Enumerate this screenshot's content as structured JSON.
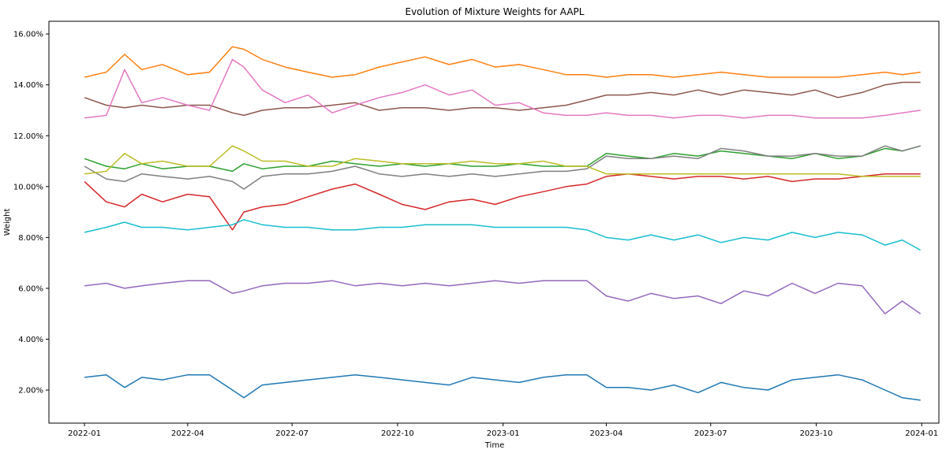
{
  "chart_data": {
    "type": "line",
    "title": "Evolution of Mixture Weights for AAPL",
    "xlabel": "Time",
    "ylabel": "Weight",
    "x_range": [
      "2021-12-01",
      "2024-01-16"
    ],
    "ylim": [
      0.007,
      0.165
    ],
    "x_ticks": [
      {
        "date": "2022-01-01",
        "label": "2022-01"
      },
      {
        "date": "2022-04-01",
        "label": "2022-04"
      },
      {
        "date": "2022-07-01",
        "label": "2022-07"
      },
      {
        "date": "2022-10-01",
        "label": "2022-10"
      },
      {
        "date": "2023-01-01",
        "label": "2023-01"
      },
      {
        "date": "2023-04-01",
        "label": "2023-04"
      },
      {
        "date": "2023-07-01",
        "label": "2023-07"
      },
      {
        "date": "2023-10-01",
        "label": "2023-10"
      },
      {
        "date": "2024-01-01",
        "label": "2024-01"
      }
    ],
    "y_ticks": [
      {
        "value": 0.02,
        "label": "2.00%"
      },
      {
        "value": 0.04,
        "label": "4.00%"
      },
      {
        "value": 0.06,
        "label": "6.00%"
      },
      {
        "value": 0.08,
        "label": "8.00%"
      },
      {
        "value": 0.1,
        "label": "10.00%"
      },
      {
        "value": 0.12,
        "label": "12.00%"
      },
      {
        "value": 0.14,
        "label": "14.00%"
      },
      {
        "value": 0.16,
        "label": "16.00%"
      }
    ],
    "grid": false,
    "legend": "none",
    "dates": [
      "2022-01-01",
      "2022-01-20",
      "2022-02-05",
      "2022-02-20",
      "2022-03-10",
      "2022-04-01",
      "2022-04-20",
      "2022-05-10",
      "2022-05-20",
      "2022-06-05",
      "2022-06-25",
      "2022-07-15",
      "2022-08-05",
      "2022-08-25",
      "2022-09-15",
      "2022-10-05",
      "2022-10-25",
      "2022-11-15",
      "2022-12-05",
      "2022-12-25",
      "2023-01-15",
      "2023-02-05",
      "2023-02-25",
      "2023-03-15",
      "2023-04-01",
      "2023-04-20",
      "2023-05-10",
      "2023-05-30",
      "2023-06-20",
      "2023-07-10",
      "2023-07-30",
      "2023-08-20",
      "2023-09-10",
      "2023-09-30",
      "2023-10-20",
      "2023-11-10",
      "2023-11-30",
      "2023-12-15",
      "2023-12-31"
    ],
    "series": [
      {
        "color": "#1f77b4",
        "values": [
          0.025,
          0.026,
          0.021,
          0.025,
          0.024,
          0.026,
          0.026,
          0.02,
          0.017,
          0.022,
          0.023,
          0.024,
          0.025,
          0.026,
          0.025,
          0.024,
          0.023,
          0.022,
          0.025,
          0.024,
          0.023,
          0.025,
          0.026,
          0.026,
          0.021,
          0.021,
          0.02,
          0.022,
          0.019,
          0.023,
          0.021,
          0.02,
          0.024,
          0.025,
          0.026,
          0.024,
          0.02,
          0.017,
          0.016
        ]
      },
      {
        "color": "#ff7f0e",
        "values": [
          0.143,
          0.145,
          0.152,
          0.146,
          0.148,
          0.144,
          0.145,
          0.155,
          0.154,
          0.15,
          0.147,
          0.145,
          0.143,
          0.144,
          0.147,
          0.149,
          0.151,
          0.148,
          0.15,
          0.147,
          0.148,
          0.146,
          0.144,
          0.144,
          0.143,
          0.144,
          0.144,
          0.143,
          0.144,
          0.145,
          0.144,
          0.143,
          0.143,
          0.143,
          0.143,
          0.144,
          0.145,
          0.144,
          0.145
        ]
      },
      {
        "color": "#2ca02c",
        "values": [
          0.111,
          0.108,
          0.107,
          0.109,
          0.107,
          0.108,
          0.108,
          0.106,
          0.109,
          0.107,
          0.108,
          0.108,
          0.11,
          0.109,
          0.108,
          0.109,
          0.108,
          0.109,
          0.108,
          0.108,
          0.109,
          0.108,
          0.108,
          0.108,
          0.113,
          0.112,
          0.111,
          0.113,
          0.112,
          0.114,
          0.113,
          0.112,
          0.111,
          0.113,
          0.111,
          0.112,
          0.115,
          0.114,
          0.116
        ]
      },
      {
        "color": "#d62728",
        "values": [
          0.102,
          0.094,
          0.092,
          0.097,
          0.094,
          0.097,
          0.096,
          0.083,
          0.09,
          0.092,
          0.093,
          0.096,
          0.099,
          0.101,
          0.097,
          0.093,
          0.091,
          0.094,
          0.095,
          0.093,
          0.096,
          0.098,
          0.1,
          0.101,
          0.104,
          0.105,
          0.104,
          0.103,
          0.104,
          0.104,
          0.103,
          0.104,
          0.102,
          0.103,
          0.103,
          0.104,
          0.105,
          0.105,
          0.105
        ]
      },
      {
        "color": "#9467bd",
        "values": [
          0.061,
          0.062,
          0.06,
          0.061,
          0.062,
          0.063,
          0.063,
          0.058,
          0.059,
          0.061,
          0.062,
          0.062,
          0.063,
          0.061,
          0.062,
          0.061,
          0.062,
          0.061,
          0.062,
          0.063,
          0.062,
          0.063,
          0.063,
          0.063,
          0.057,
          0.055,
          0.058,
          0.056,
          0.057,
          0.054,
          0.059,
          0.057,
          0.062,
          0.058,
          0.062,
          0.061,
          0.05,
          0.055,
          0.05
        ]
      },
      {
        "color": "#8c564b",
        "values": [
          0.135,
          0.132,
          0.131,
          0.132,
          0.131,
          0.132,
          0.132,
          0.129,
          0.128,
          0.13,
          0.131,
          0.131,
          0.132,
          0.133,
          0.13,
          0.131,
          0.131,
          0.13,
          0.131,
          0.131,
          0.13,
          0.131,
          0.132,
          0.134,
          0.136,
          0.136,
          0.137,
          0.136,
          0.138,
          0.136,
          0.138,
          0.137,
          0.136,
          0.138,
          0.135,
          0.137,
          0.14,
          0.141,
          0.141
        ]
      },
      {
        "color": "#e377c2",
        "values": [
          0.127,
          0.128,
          0.146,
          0.133,
          0.135,
          0.132,
          0.13,
          0.15,
          0.147,
          0.138,
          0.133,
          0.136,
          0.129,
          0.132,
          0.135,
          0.137,
          0.14,
          0.136,
          0.138,
          0.132,
          0.133,
          0.129,
          0.128,
          0.128,
          0.129,
          0.128,
          0.128,
          0.127,
          0.128,
          0.128,
          0.127,
          0.128,
          0.128,
          0.127,
          0.127,
          0.127,
          0.128,
          0.129,
          0.13
        ]
      },
      {
        "color": "#7f7f7f",
        "values": [
          0.108,
          0.103,
          0.102,
          0.105,
          0.104,
          0.103,
          0.104,
          0.102,
          0.099,
          0.104,
          0.105,
          0.105,
          0.106,
          0.108,
          0.105,
          0.104,
          0.105,
          0.104,
          0.105,
          0.104,
          0.105,
          0.106,
          0.106,
          0.107,
          0.112,
          0.111,
          0.111,
          0.112,
          0.111,
          0.115,
          0.114,
          0.112,
          0.112,
          0.113,
          0.112,
          0.112,
          0.116,
          0.114,
          0.116
        ]
      },
      {
        "color": "#bcbd22",
        "values": [
          0.105,
          0.106,
          0.113,
          0.109,
          0.11,
          0.108,
          0.108,
          0.116,
          0.114,
          0.11,
          0.11,
          0.108,
          0.108,
          0.111,
          0.11,
          0.109,
          0.109,
          0.109,
          0.11,
          0.109,
          0.109,
          0.11,
          0.108,
          0.108,
          0.105,
          0.105,
          0.105,
          0.105,
          0.105,
          0.105,
          0.105,
          0.105,
          0.105,
          0.105,
          0.105,
          0.104,
          0.104,
          0.104,
          0.104
        ]
      },
      {
        "color": "#17becf",
        "values": [
          0.082,
          0.084,
          0.086,
          0.084,
          0.084,
          0.083,
          0.084,
          0.085,
          0.087,
          0.085,
          0.084,
          0.084,
          0.083,
          0.083,
          0.084,
          0.084,
          0.085,
          0.085,
          0.085,
          0.084,
          0.084,
          0.084,
          0.084,
          0.083,
          0.08,
          0.079,
          0.081,
          0.079,
          0.081,
          0.078,
          0.08,
          0.079,
          0.082,
          0.08,
          0.082,
          0.081,
          0.077,
          0.079,
          0.075
        ]
      }
    ]
  }
}
